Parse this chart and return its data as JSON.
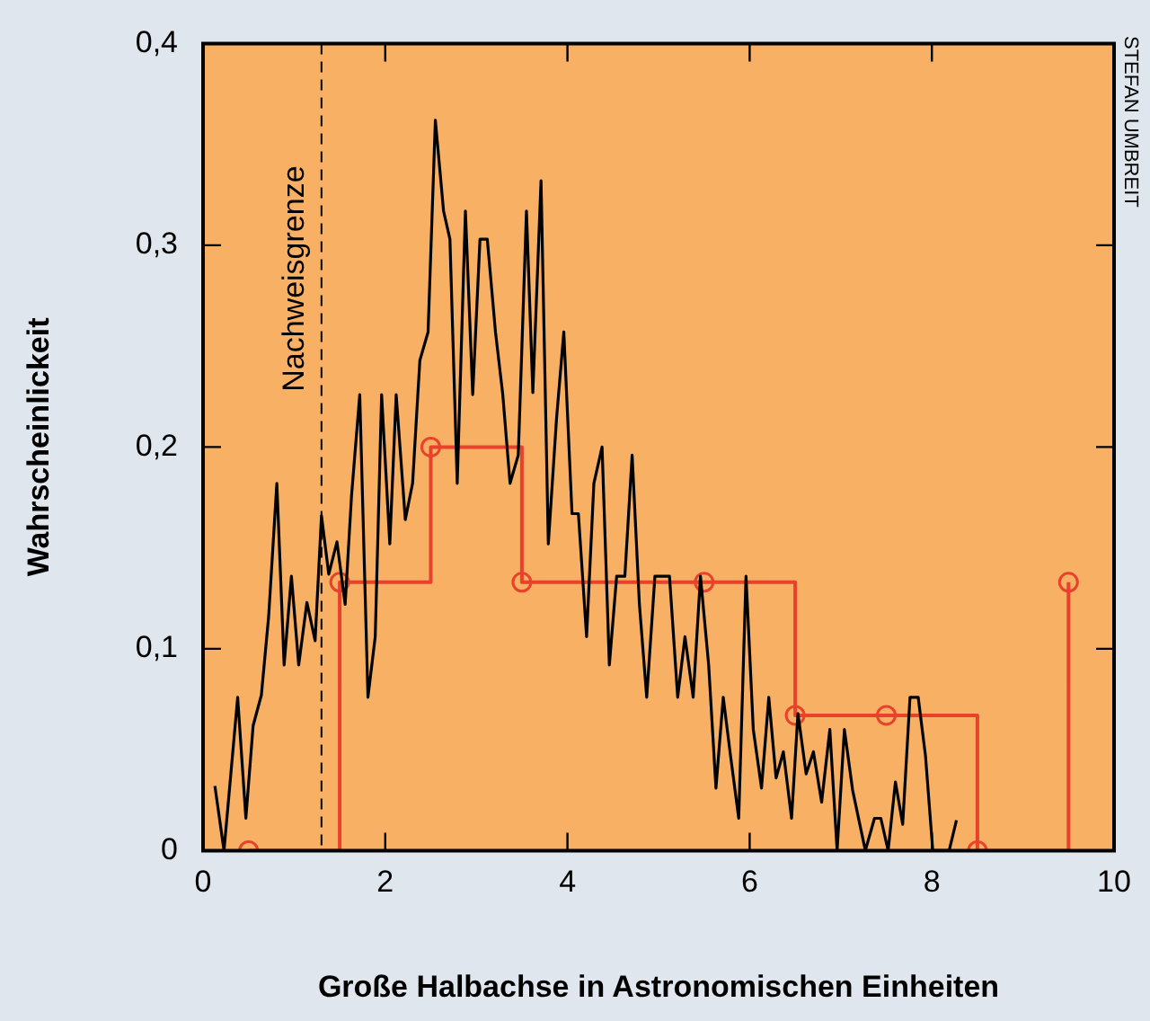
{
  "chart_data": {
    "type": "line",
    "xlabel": "Große Halbachse in Astronomischen Einheiten",
    "ylabel": "Wahrscheinlickeit",
    "xlim": [
      0,
      10
    ],
    "xticks": [
      0,
      2,
      4,
      6,
      8,
      10
    ],
    "ylim": [
      0,
      0.4
    ],
    "yticks": [
      {
        "value": 0,
        "label": "0"
      },
      {
        "value": 0.1,
        "label": "0,1"
      },
      {
        "value": 0.2,
        "label": "0,2"
      },
      {
        "value": 0.3,
        "label": "0,3"
      },
      {
        "value": 0.4,
        "label": "0,4"
      }
    ],
    "grid": false,
    "legend": false,
    "ref_lines": [
      {
        "axis": "x",
        "value": 1.3,
        "label": "Nachweisgrenze",
        "color": "#000000",
        "line_style": "dashed"
      }
    ],
    "annotations": [
      "STEFAN UMBREIT"
    ],
    "series": [
      {
        "type": "line",
        "color": "#000000",
        "marker": "none",
        "x": [
          0.13,
          0.23,
          0.38,
          0.47,
          0.55,
          0.64,
          0.72,
          0.81,
          0.89,
          0.97,
          1.05,
          1.14,
          1.23,
          1.3,
          1.38,
          1.47,
          1.56,
          1.63,
          1.72,
          1.81,
          1.89,
          1.96,
          2.05,
          2.12,
          2.22,
          2.3,
          2.38,
          2.47,
          2.55,
          2.64,
          2.71,
          2.79,
          2.88,
          2.96,
          3.04,
          3.12,
          3.21,
          3.29,
          3.37,
          3.46,
          3.55,
          3.62,
          3.71,
          3.79,
          3.88,
          3.96,
          4.05,
          4.12,
          4.21,
          4.29,
          4.38,
          4.46,
          4.54,
          4.63,
          4.71,
          4.79,
          4.87,
          4.96,
          5.12,
          5.21,
          5.29,
          5.38,
          5.46,
          5.55,
          5.63,
          5.71,
          5.79,
          5.88,
          5.96,
          6.04,
          6.13,
          6.21,
          6.29,
          6.37,
          6.46,
          6.53,
          6.62,
          6.7,
          6.79,
          6.88,
          6.96,
          7.04,
          7.13,
          7.27,
          7.37,
          7.44,
          7.52,
          7.6,
          7.68,
          7.76,
          7.85,
          7.93,
          8.01,
          8.19,
          8.27
        ],
        "values": [
          0.032,
          0,
          0.076,
          0.016,
          0.062,
          0.077,
          0.116,
          0.182,
          0.092,
          0.136,
          0.092,
          0.123,
          0.104,
          0.166,
          0.137,
          0.153,
          0.122,
          0.176,
          0.226,
          0.076,
          0.106,
          0.226,
          0.152,
          0.226,
          0.164,
          0.182,
          0.243,
          0.257,
          0.362,
          0.317,
          0.303,
          0.182,
          0.317,
          0.226,
          0.303,
          0.303,
          0.257,
          0.226,
          0.182,
          0.196,
          0.317,
          0.227,
          0.332,
          0.152,
          0.214,
          0.257,
          0.167,
          0.167,
          0.106,
          0.182,
          0.2,
          0.092,
          0.136,
          0.136,
          0.196,
          0.122,
          0.076,
          0.136,
          0.136,
          0.076,
          0.106,
          0.076,
          0.136,
          0.092,
          0.031,
          0.076,
          0.047,
          0.016,
          0.136,
          0.06,
          0.031,
          0.076,
          0.036,
          0.049,
          0.016,
          0.068,
          0.038,
          0.049,
          0.024,
          0.06,
          0,
          0.06,
          0.03,
          0,
          0.016,
          0.016,
          0,
          0.034,
          0.013,
          0.076,
          0.076,
          0.047,
          0,
          0,
          0.015
        ]
      },
      {
        "type": "step",
        "color": "#e8412c",
        "marker": "circle",
        "x": [
          0.5,
          1.5,
          2.5,
          3.5,
          5.5,
          6.5,
          7.5,
          8.5,
          9.5
        ],
        "values": [
          0,
          0.133,
          0.2,
          0.133,
          0.133,
          0.067,
          0.067,
          0,
          0.133
        ]
      }
    ]
  }
}
